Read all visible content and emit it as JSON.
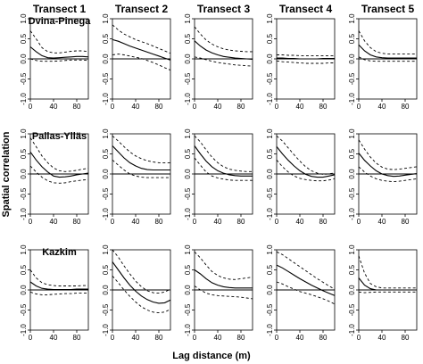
{
  "figure": {
    "column_titles": [
      "Transect 1",
      "Transect 2",
      "Transect 3",
      "Transect 4",
      "Transect 5"
    ],
    "row_titles": [
      "Dvina-Pinega",
      "Pallas-Ylläs",
      "Kazkim"
    ],
    "ylabel": "Spatial correlation",
    "xlabel": "Lag distance (m)",
    "x_ticks": [
      "0",
      "40",
      "80"
    ],
    "y_ticks": [
      "-1.0",
      "-0.5",
      "0.0",
      "0.5",
      "1.0"
    ]
  },
  "chart_data": {
    "type": "line",
    "xlabel": "Lag distance (m)",
    "ylabel": "Spatial correlation",
    "xlim": [
      0,
      100
    ],
    "ylim": [
      -1.0,
      1.0
    ],
    "x": [
      0,
      10,
      20,
      30,
      40,
      50,
      60,
      70,
      80,
      90,
      100
    ],
    "series_legend": "solid = correlation estimate, dashed = confidence envelope",
    "panels": [
      {
        "row": "Dvina-Pinega",
        "col": "Transect 1",
        "mean": [
          0.3,
          0.18,
          0.08,
          0.03,
          0.02,
          0.03,
          0.04,
          0.05,
          0.06,
          0.06,
          0.05
        ],
        "upper": [
          0.7,
          0.5,
          0.28,
          0.18,
          0.15,
          0.15,
          0.17,
          0.19,
          0.2,
          0.2,
          0.18
        ],
        "lower": [
          0.0,
          -0.04,
          -0.06,
          -0.06,
          -0.06,
          -0.05,
          -0.04,
          -0.03,
          -0.03,
          -0.03,
          -0.04
        ]
      },
      {
        "row": "Dvina-Pinega",
        "col": "Transect 2",
        "mean": [
          0.48,
          0.44,
          0.38,
          0.32,
          0.27,
          0.22,
          0.17,
          0.12,
          0.07,
          0.02,
          -0.03
        ],
        "upper": [
          0.85,
          0.72,
          0.62,
          0.55,
          0.48,
          0.43,
          0.38,
          0.32,
          0.26,
          0.2,
          0.14
        ],
        "lower": [
          0.1,
          0.12,
          0.1,
          0.07,
          0.04,
          0.01,
          -0.04,
          -0.09,
          -0.15,
          -0.22,
          -0.28
        ]
      },
      {
        "row": "Dvina-Pinega",
        "col": "Transect 3",
        "mean": [
          0.45,
          0.32,
          0.22,
          0.15,
          0.1,
          0.06,
          0.04,
          0.02,
          0.01,
          0.0,
          -0.01
        ],
        "upper": [
          0.8,
          0.62,
          0.47,
          0.37,
          0.3,
          0.25,
          0.22,
          0.2,
          0.19,
          0.18,
          0.18
        ],
        "lower": [
          0.05,
          0.02,
          -0.02,
          -0.06,
          -0.09,
          -0.11,
          -0.13,
          -0.15,
          -0.16,
          -0.17,
          -0.18
        ]
      },
      {
        "row": "Dvina-Pinega",
        "col": "Transect 4",
        "mean": [
          0.02,
          0.02,
          0.01,
          0.01,
          0.0,
          0.0,
          0.0,
          0.0,
          0.01,
          0.01,
          0.01
        ],
        "upper": [
          0.1,
          0.1,
          0.09,
          0.09,
          0.08,
          0.08,
          0.08,
          0.08,
          0.08,
          0.08,
          0.08
        ],
        "lower": [
          -0.05,
          -0.07,
          -0.08,
          -0.09,
          -0.1,
          -0.11,
          -0.11,
          -0.11,
          -0.11,
          -0.1,
          -0.1
        ]
      },
      {
        "row": "Dvina-Pinega",
        "col": "Transect 5",
        "mean": [
          0.35,
          0.2,
          0.1,
          0.05,
          0.03,
          0.02,
          0.02,
          0.02,
          0.02,
          0.02,
          0.02
        ],
        "upper": [
          0.7,
          0.45,
          0.28,
          0.18,
          0.14,
          0.12,
          0.12,
          0.12,
          0.12,
          0.12,
          0.12
        ],
        "lower": [
          0.05,
          -0.02,
          -0.05,
          -0.06,
          -0.06,
          -0.06,
          -0.06,
          -0.06,
          -0.06,
          -0.06,
          -0.06
        ]
      },
      {
        "row": "Pallas-Ylläs",
        "col": "Transect 1",
        "mean": [
          0.55,
          0.35,
          0.18,
          0.05,
          -0.05,
          -0.08,
          -0.07,
          -0.05,
          -0.02,
          0.0,
          0.02
        ],
        "upper": [
          0.9,
          0.68,
          0.45,
          0.28,
          0.15,
          0.08,
          0.06,
          0.07,
          0.09,
          0.12,
          0.14
        ],
        "lower": [
          0.2,
          0.05,
          -0.08,
          -0.17,
          -0.22,
          -0.23,
          -0.22,
          -0.19,
          -0.17,
          -0.15,
          -0.14
        ]
      },
      {
        "row": "Pallas-Ylläs",
        "col": "Transect 2",
        "mean": [
          0.7,
          0.55,
          0.4,
          0.28,
          0.2,
          0.14,
          0.11,
          0.1,
          0.1,
          0.1,
          0.1
        ],
        "upper": [
          0.95,
          0.82,
          0.68,
          0.55,
          0.45,
          0.38,
          0.33,
          0.3,
          0.28,
          0.28,
          0.28
        ],
        "lower": [
          0.35,
          0.22,
          0.1,
          0.0,
          -0.05,
          -0.08,
          -0.09,
          -0.09,
          -0.09,
          -0.09,
          -0.09
        ]
      },
      {
        "row": "Pallas-Ylläs",
        "col": "Transect 3",
        "mean": [
          0.7,
          0.5,
          0.32,
          0.18,
          0.08,
          0.02,
          -0.02,
          -0.04,
          -0.05,
          -0.05,
          -0.05
        ],
        "upper": [
          0.95,
          0.8,
          0.6,
          0.42,
          0.28,
          0.18,
          0.12,
          0.09,
          0.07,
          0.06,
          0.06
        ],
        "lower": [
          0.4,
          0.22,
          0.05,
          -0.05,
          -0.1,
          -0.13,
          -0.15,
          -0.16,
          -0.16,
          -0.16,
          -0.16
        ]
      },
      {
        "row": "Pallas-Ylläs",
        "col": "Transect 4",
        "mean": [
          0.68,
          0.5,
          0.34,
          0.2,
          0.08,
          -0.01,
          -0.06,
          -0.08,
          -0.08,
          -0.05,
          -0.02
        ],
        "upper": [
          0.95,
          0.82,
          0.65,
          0.48,
          0.32,
          0.18,
          0.08,
          0.02,
          -0.01,
          0.0,
          0.03
        ],
        "lower": [
          0.35,
          0.18,
          0.05,
          -0.05,
          -0.11,
          -0.14,
          -0.16,
          -0.17,
          -0.17,
          -0.15,
          -0.12
        ]
      },
      {
        "row": "Pallas-Ylläs",
        "col": "Transect 5",
        "mean": [
          0.52,
          0.34,
          0.2,
          0.08,
          0.0,
          -0.04,
          -0.06,
          -0.05,
          -0.03,
          -0.01,
          0.01
        ],
        "upper": [
          0.85,
          0.62,
          0.42,
          0.27,
          0.17,
          0.12,
          0.11,
          0.12,
          0.14,
          0.16,
          0.18
        ],
        "lower": [
          0.18,
          0.05,
          -0.05,
          -0.12,
          -0.16,
          -0.18,
          -0.19,
          -0.18,
          -0.16,
          -0.14,
          -0.12
        ]
      },
      {
        "row": "Kazkim",
        "col": "Transect 1",
        "mean": [
          0.2,
          0.1,
          0.04,
          0.02,
          0.01,
          0.01,
          0.01,
          0.01,
          0.02,
          0.02,
          0.02
        ],
        "upper": [
          0.5,
          0.3,
          0.18,
          0.13,
          0.11,
          0.1,
          0.1,
          0.1,
          0.1,
          0.11,
          0.11
        ],
        "lower": [
          -0.05,
          -0.1,
          -0.12,
          -0.12,
          -0.11,
          -0.1,
          -0.09,
          -0.09,
          -0.08,
          -0.08,
          -0.08
        ]
      },
      {
        "row": "Kazkim",
        "col": "Transect 2",
        "mean": [
          0.7,
          0.5,
          0.3,
          0.12,
          -0.03,
          -0.15,
          -0.24,
          -0.3,
          -0.33,
          -0.32,
          -0.25
        ],
        "upper": [
          1.0,
          0.82,
          0.6,
          0.4,
          0.22,
          0.08,
          -0.02,
          -0.07,
          -0.08,
          -0.05,
          0.02
        ],
        "lower": [
          0.35,
          0.18,
          0.0,
          -0.16,
          -0.3,
          -0.42,
          -0.5,
          -0.55,
          -0.57,
          -0.55,
          -0.48
        ]
      },
      {
        "row": "Kazkim",
        "col": "Transect 3",
        "mean": [
          0.5,
          0.4,
          0.28,
          0.18,
          0.12,
          0.08,
          0.06,
          0.05,
          0.05,
          0.05,
          0.05
        ],
        "upper": [
          0.95,
          0.8,
          0.62,
          0.46,
          0.36,
          0.3,
          0.27,
          0.26,
          0.28,
          0.3,
          0.32
        ],
        "lower": [
          0.1,
          0.0,
          -0.08,
          -0.12,
          -0.14,
          -0.15,
          -0.16,
          -0.17,
          -0.18,
          -0.2,
          -0.22
        ]
      },
      {
        "row": "Kazkim",
        "col": "Transect 4",
        "mean": [
          0.62,
          0.55,
          0.46,
          0.37,
          0.28,
          0.2,
          0.12,
          0.05,
          -0.02,
          -0.08,
          -0.14
        ],
        "upper": [
          0.95,
          0.88,
          0.78,
          0.68,
          0.58,
          0.48,
          0.38,
          0.28,
          0.19,
          0.1,
          0.02
        ],
        "lower": [
          0.2,
          0.15,
          0.08,
          0.02,
          -0.04,
          -0.08,
          -0.12,
          -0.17,
          -0.22,
          -0.28,
          -0.35
        ]
      },
      {
        "row": "Kazkim",
        "col": "Transect 5",
        "mean": [
          0.3,
          0.12,
          0.03,
          0.0,
          0.0,
          0.0,
          0.0,
          0.0,
          0.0,
          0.0,
          0.0
        ],
        "upper": [
          0.85,
          0.42,
          0.16,
          0.08,
          0.05,
          0.05,
          0.05,
          0.05,
          0.05,
          0.05,
          0.05
        ],
        "lower": [
          -0.05,
          -0.07,
          -0.06,
          -0.05,
          -0.05,
          -0.05,
          -0.05,
          -0.05,
          -0.05,
          -0.05,
          -0.05
        ]
      }
    ]
  }
}
